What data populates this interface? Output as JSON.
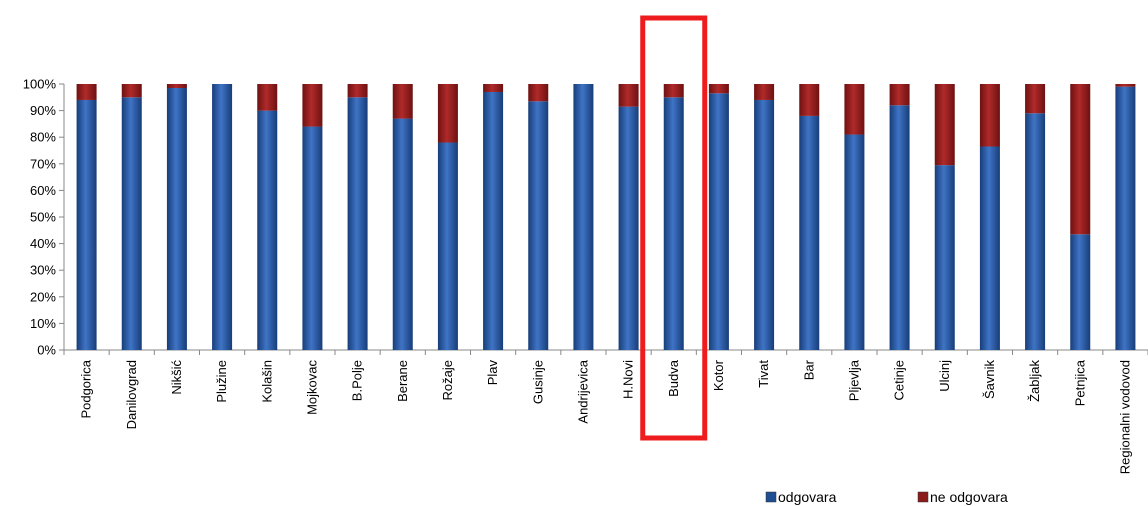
{
  "chart_data": {
    "type": "bar",
    "stacked": true,
    "normalized": true,
    "categories": [
      "Podgorica",
      "Danilovgrad",
      "Nikšić",
      "Plužine",
      "Kolašin",
      "Mojkovac",
      "B.Polje",
      "Berane",
      "Rožaje",
      "Plav",
      "Gusinje",
      "Andrijevica",
      "H.Novi",
      "Budva",
      "Kotor",
      "Tivat",
      "Bar",
      "Pljevlja",
      "Cetinje",
      "Ulcinj",
      "Šavnik",
      "Žabljak",
      "Petnjica",
      "Regionalni vodovod"
    ],
    "series": [
      {
        "name": "odgovara",
        "color": "#1f4e93",
        "values": [
          94,
          95,
          98.5,
          100,
          90,
          84,
          95,
          87,
          78,
          97,
          93.5,
          100,
          91.5,
          95,
          96.5,
          94,
          88,
          81,
          92,
          69.5,
          76.5,
          89,
          43.5,
          99
        ]
      },
      {
        "name": "ne odgovara",
        "color": "#8b1a1a",
        "values": [
          6,
          5,
          1.5,
          0,
          10,
          16,
          5,
          13,
          22,
          3,
          6.5,
          0,
          8.5,
          5,
          3.5,
          6,
          12,
          19,
          8,
          30.5,
          23.5,
          11,
          56.5,
          1
        ]
      }
    ],
    "yticks": [
      "0%",
      "10%",
      "20%",
      "30%",
      "40%",
      "50%",
      "60%",
      "70%",
      "80%",
      "90%",
      "100%"
    ],
    "ylim": [
      0,
      100
    ],
    "highlight": "Budva",
    "highlight_color": "#ee1c1c",
    "legend_position": "bottom-right",
    "title": "",
    "xlabel": "",
    "ylabel": ""
  }
}
